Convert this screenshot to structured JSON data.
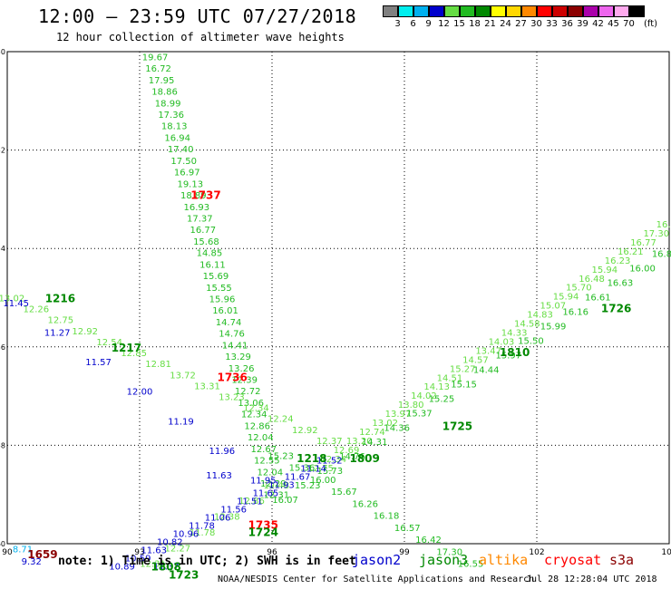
{
  "header": {
    "title": "12:00 — 23:59 UTC 07/27/2018",
    "subtitle": "12 hour collection of altimeter wave heights"
  },
  "colorbar": {
    "unit": "(ft)",
    "bins": [
      {
        "label": "3",
        "color": "#808080"
      },
      {
        "label": "6",
        "color": "#00eeee"
      },
      {
        "label": "9",
        "color": "#00b0ee"
      },
      {
        "label": "12",
        "color": "#0000cc"
      },
      {
        "label": "15",
        "color": "#66dd44"
      },
      {
        "label": "18",
        "color": "#22bb22"
      },
      {
        "label": "21",
        "color": "#008800"
      },
      {
        "label": "24",
        "color": "#ffff00"
      },
      {
        "label": "27",
        "color": "#ffd700"
      },
      {
        "label": "30",
        "color": "#ff8800"
      },
      {
        "label": "33",
        "color": "#ff0000"
      },
      {
        "label": "36",
        "color": "#cc0000"
      },
      {
        "label": "39",
        "color": "#8b0000"
      },
      {
        "label": "42",
        "color": "#aa00aa"
      },
      {
        "label": "45",
        "color": "#ee66ee"
      },
      {
        "label": "70",
        "color": "#ffaaee"
      },
      {
        "label": "",
        "color": "#000000"
      }
    ]
  },
  "map": {
    "lon_range": [
      90,
      105
    ],
    "lat_range": [
      -60,
      -50
    ],
    "lon_ticks": [
      "90",
      "93",
      "96",
      "99",
      "102",
      "105"
    ],
    "lat_ticks": [
      "-50",
      "-52",
      "-54",
      "-56",
      "-58",
      "-60"
    ],
    "tracks": [
      {
        "satellite": "jason3",
        "start": [
          93.35,
          -50.1
        ],
        "end": [
          96.1,
          -59.0
        ],
        "color": "#22bb22",
        "values": [
          "19.67",
          "16.72",
          "17.95",
          "18.86",
          "18.99",
          "17.36",
          "18.13",
          "16.94",
          "17.40",
          "17.50",
          "16.97",
          "19.13",
          "18.89",
          "16.93",
          "17.37",
          "16.77",
          "15.68",
          "14.85",
          "16.11",
          "15.69",
          "15.55",
          "15.96",
          "16.01",
          "14.74",
          "14.76",
          "14.41",
          "13.29",
          "13.26",
          "12.39",
          "12.72",
          "13.06",
          "12.34",
          "12.86",
          "12.04",
          "12.67",
          "12.55",
          "12.04",
          "12.29",
          "12.31"
        ]
      },
      {
        "satellite": "jason3",
        "start": [
          90.1,
          -55.0
        ],
        "end": [
          97.3,
          -57.9
        ],
        "color": "#66dd44",
        "values": [
          "13.02",
          "12.26",
          "12.75",
          "12.92",
          "12.54",
          "12.85",
          "12.81",
          "13.72",
          "13.31",
          "13.23",
          "12.34",
          "12.24",
          "12.92",
          "12.37"
        ]
      },
      {
        "satellite": "jason3",
        "start": [
          97.1,
          -58.45
        ],
        "end": [
          105.0,
          -53.5
        ],
        "color": "#66dd44",
        "values": [
          "12.75",
          "12.34",
          "12.69",
          "13.20",
          "12.74",
          "13.02",
          "13.97",
          "13.80",
          "14.02",
          "14.13",
          "14.51",
          "15.27",
          "14.57",
          "13.47",
          "14.03",
          "14.33",
          "14.58",
          "14.83",
          "15.07",
          "15.94",
          "15.70",
          "16.48",
          "15.94",
          "16.23",
          "16.21",
          "16.77",
          "17.30",
          "16.88"
        ]
      },
      {
        "satellite": "jason3",
        "start": [
          96.3,
          -59.1
        ],
        "end": [
          104.9,
          -54.1
        ],
        "color": "#22bb22",
        "values": [
          "16.07",
          "15.23",
          "15.73",
          "14.76",
          "14.31",
          "14.36",
          "15.37",
          "15.25",
          "15.15",
          "14.44",
          "15.97",
          "15.50",
          "15.99",
          "16.16",
          "16.61",
          "16.63",
          "16.00",
          "16.80"
        ]
      },
      {
        "satellite": "jason3",
        "start": [
          96.2,
          -58.2
        ],
        "end": [
          100.5,
          -60.4
        ],
        "color": "#22bb22",
        "values": [
          "15.23",
          "15.36",
          "16.00",
          "15.67",
          "16.26",
          "16.18",
          "16.57",
          "16.42",
          "17.30",
          "16.55"
        ]
      },
      {
        "satellite": "jason3",
        "start": [
          93.3,
          -60.4
        ],
        "end": [
          96.1,
          -58.8
        ],
        "color": "#66dd44",
        "values": [
          "12.31",
          "12.27",
          "11.78",
          "12.38",
          "12.86",
          "12.48"
        ]
      },
      {
        "satellite": "jason2",
        "start": [
          90.2,
          -55.1
        ],
        "end": [
          95.8,
          -58.7
        ],
        "color": "#0000cc",
        "values": [
          "11.45",
          "11.27",
          "11.57",
          "12.00",
          "11.19",
          "11.96",
          "11.95"
        ]
      },
      {
        "satellite": "jason2",
        "start": [
          92.6,
          -60.45
        ],
        "end": [
          97.3,
          -58.3
        ],
        "color": "#0000cc",
        "values": [
          "10.89",
          "10.59",
          "11.63",
          "10.82",
          "10.96",
          "11.78",
          "11.06",
          "11.56",
          "11.51",
          "11.65",
          "11.93",
          "11.67",
          "11.14",
          "11.52"
        ]
      }
    ],
    "extra_labels": [
      {
        "text": "11.63",
        "lon": 94.8,
        "lat": -58.6,
        "color": "#0000cc"
      },
      {
        "text": "11.37",
        "lon": 93.6,
        "lat": -60.45,
        "color": "#0000cc"
      },
      {
        "text": "8.71",
        "lon": 90.35,
        "lat": -60.1,
        "color": "#00b0ee"
      },
      {
        "text": "9.32",
        "lon": 90.55,
        "lat": -60.35,
        "color": "#0000cc"
      }
    ],
    "time_labels": [
      {
        "text": "1216",
        "lon": 91.2,
        "lat": -55.0,
        "color": "#008800"
      },
      {
        "text": "1217",
        "lon": 92.7,
        "lat": -56.0,
        "color": "#008800"
      },
      {
        "text": "1737",
        "lon": 94.5,
        "lat": -52.9,
        "color": "#ff0000"
      },
      {
        "text": "1736",
        "lon": 95.1,
        "lat": -56.6,
        "color": "#ff0000"
      },
      {
        "text": "1218",
        "lon": 96.9,
        "lat": -58.25,
        "color": "#008800"
      },
      {
        "text": "1809",
        "lon": 98.1,
        "lat": -58.25,
        "color": "#008800"
      },
      {
        "text": "1810",
        "lon": 101.5,
        "lat": -56.1,
        "color": "#008800"
      },
      {
        "text": "1726",
        "lon": 103.8,
        "lat": -55.2,
        "color": "#008800"
      },
      {
        "text": "1725",
        "lon": 100.2,
        "lat": -57.6,
        "color": "#008800"
      },
      {
        "text": "1735",
        "lon": 95.8,
        "lat": -59.6,
        "color": "#ff0000"
      },
      {
        "text": "1724",
        "lon": 95.8,
        "lat": -59.75,
        "color": "#008800"
      },
      {
        "text": "1659",
        "lon": 90.8,
        "lat": -60.2,
        "color": "#8b0000"
      },
      {
        "text": "1808",
        "lon": 93.6,
        "lat": -60.45,
        "color": "#008800"
      },
      {
        "text": "1723",
        "lon": 94.0,
        "lat": -60.62,
        "color": "#008800"
      }
    ]
  },
  "footer": {
    "note": "note: 1) Time is in UTC; 2) SWH is in feet",
    "satellites": [
      {
        "name": "jason2",
        "color": "#0000cc"
      },
      {
        "name": "jason3",
        "color": "#008800"
      },
      {
        "name": "altika",
        "color": "#ff8800"
      },
      {
        "name": "cryosat",
        "color": "#ff0000"
      },
      {
        "name": "s3a",
        "color": "#8b0000"
      }
    ],
    "credit": "NOAA/NESDIS Center for Satellite Applications and Research",
    "timestamp": "Jul 28 12:28:04 UTC 2018"
  }
}
